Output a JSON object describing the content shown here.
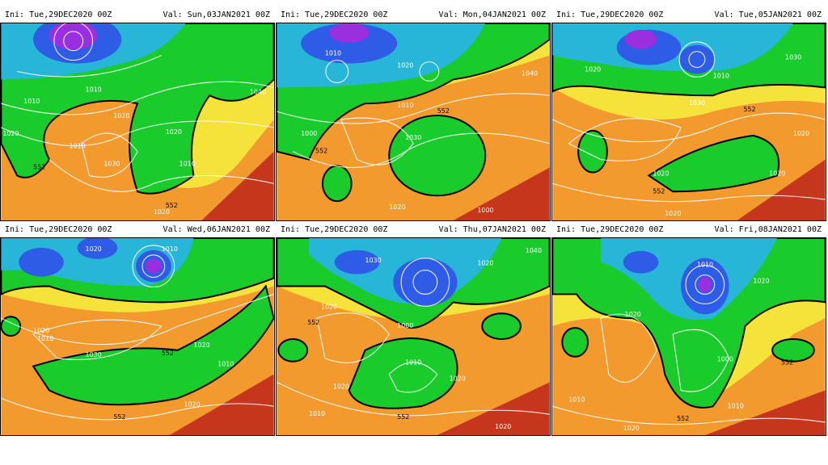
{
  "panels": [
    {
      "ini": "Ini:  Tue,29DEC2020  00Z",
      "val": "Val:  Sun,03JAN2021  00Z",
      "labels": [
        "1010",
        "1010",
        "1020",
        "1010",
        "1030",
        "1020",
        "1010",
        "1040",
        "552",
        "552",
        "1020",
        "1020"
      ]
    },
    {
      "ini": "Ini:  Tue,29DEC2020  00Z",
      "val": "Val:  Mon,04JAN2021  00Z",
      "labels": [
        "1010",
        "1010",
        "1000",
        "1020",
        "1030",
        "1040",
        "552",
        "552",
        "1020",
        "1000"
      ]
    },
    {
      "ini": "Ini:  Tue,29DEC2020  00Z",
      "val": "Val:  Tue,05JAN2021  00Z",
      "labels": [
        "1020",
        "1010",
        "1030",
        "1030",
        "1020",
        "1020",
        "552",
        "552",
        "1020",
        "1020"
      ]
    },
    {
      "ini": "Ini:  Tue,29DEC2020  00Z",
      "val": "Val:  Wed,06JAN2021  00Z",
      "labels": [
        "1020",
        "1010",
        "1010",
        "1030",
        "1020",
        "552",
        "552",
        "1020",
        "1020",
        "1010"
      ]
    },
    {
      "ini": "Ini:  Tue,29DEC2020  00Z",
      "val": "Val:  Thu,07JAN2021  00Z",
      "labels": [
        "1030",
        "1020",
        "1040",
        "1020",
        "1000",
        "1010",
        "1020",
        "552",
        "552",
        "1020",
        "1010",
        "1020"
      ]
    },
    {
      "ini": "Ini:  Tue,29DEC2020  00Z",
      "val": "Val:  Fri,08JAN2021  00Z",
      "labels": [
        "1010",
        "1020",
        "1020",
        "1000",
        "1010",
        "1010",
        "552",
        "552",
        "1020"
      ]
    }
  ],
  "palette": {
    "orange": "#f29a2e",
    "yellow": "#f5e23a",
    "green": "#19cc2c",
    "cyan": "#27b6d8",
    "blue": "#2f5ce6",
    "purple": "#9a2fe0",
    "red": "#c6361c"
  }
}
